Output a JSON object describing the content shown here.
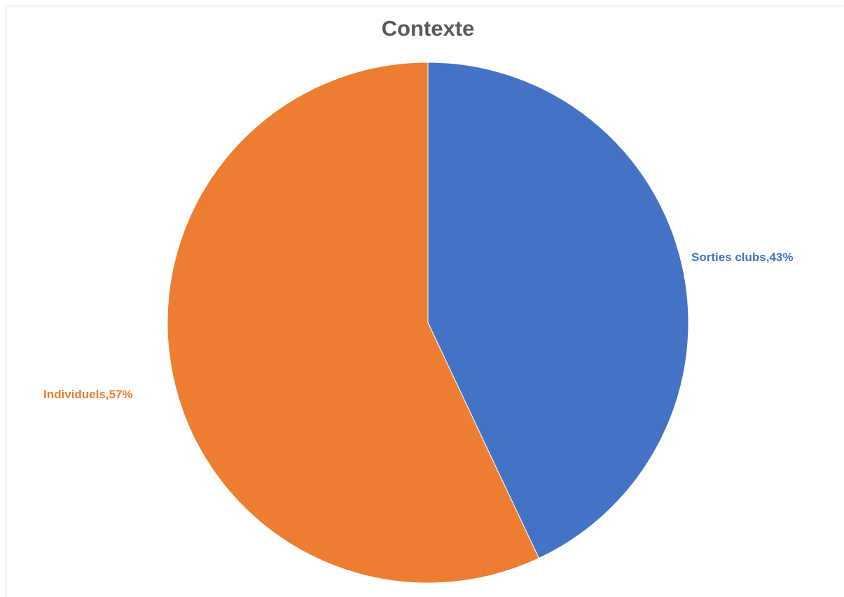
{
  "chart_data": {
    "type": "pie",
    "title": "Contexte",
    "categories": [
      "Sorties clubs",
      "Individuels"
    ],
    "values": [
      43,
      57
    ],
    "unit": "%",
    "colors": [
      "#4472C4",
      "#ED7D31"
    ],
    "labels": [
      "Sorties clubs,43%",
      "Individuels,57%"
    ],
    "legend": "none",
    "start_angle_deg": 0,
    "direction": "clockwise"
  }
}
